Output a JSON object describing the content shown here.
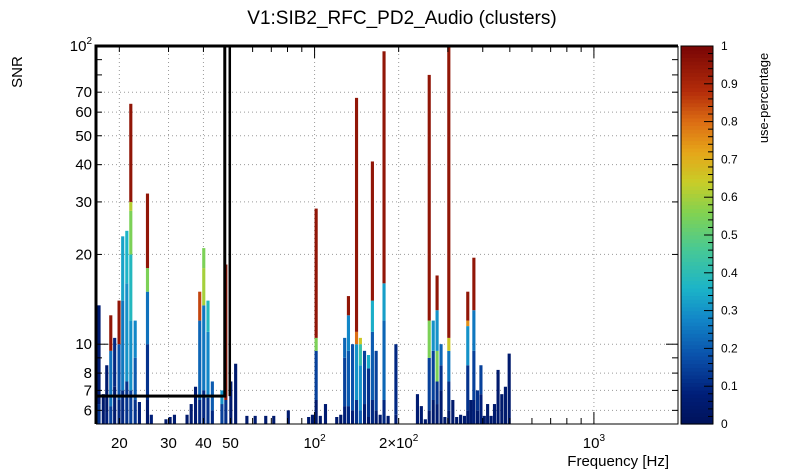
{
  "chart_data": {
    "type": "heatmap",
    "title": "V1:SIB2_RFC_PD2_Audio (clusters)",
    "xlabel": "Frequency [Hz]",
    "ylabel": "SNR",
    "zlabel": "use-percentage",
    "x_scale": "log",
    "y_scale": "log",
    "xlim": [
      16.5,
      2000
    ],
    "ylim": [
      5.4,
      100
    ],
    "zlim": [
      0,
      1
    ],
    "x_ticks": [
      {
        "value": 20,
        "label": "20"
      },
      {
        "value": 30,
        "label": "30"
      },
      {
        "value": 40,
        "label": "40"
      },
      {
        "value": 50,
        "label": "50"
      },
      {
        "value": 100,
        "label": "10",
        "sup": "2"
      },
      {
        "value": 200,
        "label": "2×10",
        "sup": "2"
      },
      {
        "value": 1000,
        "label": "10",
        "sup": "3"
      }
    ],
    "y_ticks": [
      {
        "value": 6,
        "label": "6"
      },
      {
        "value": 7,
        "label": "7"
      },
      {
        "value": 8,
        "label": "8"
      },
      {
        "value": 10,
        "label": "10"
      },
      {
        "value": 20,
        "label": "20"
      },
      {
        "value": 30,
        "label": "30"
      },
      {
        "value": 40,
        "label": "40"
      },
      {
        "value": 50,
        "label": "50"
      },
      {
        "value": 60,
        "label": "60"
      },
      {
        "value": 70,
        "label": "70"
      },
      {
        "value": 100,
        "label": "10",
        "sup": "2"
      }
    ],
    "z_ticks": [
      0,
      0.1,
      0.2,
      0.3,
      0.4,
      0.5,
      0.6,
      0.7,
      0.8,
      0.9,
      1
    ],
    "columns": [
      {
        "f": 16.7,
        "segs": [
          [
            5.4,
            6.3,
            0.12
          ],
          [
            6.3,
            13.5,
            0.06
          ]
        ]
      },
      {
        "f": 17.3,
        "segs": [
          [
            5.4,
            6.8,
            0.05
          ]
        ]
      },
      {
        "f": 17.8,
        "segs": [
          [
            5.4,
            5.9,
            0.08
          ],
          [
            5.9,
            8.5,
            0.05
          ]
        ]
      },
      {
        "f": 18.4,
        "segs": [
          [
            5.4,
            6.2,
            0.15
          ],
          [
            6.2,
            9.5,
            0.24
          ],
          [
            9.5,
            12.5,
            0.95
          ]
        ]
      },
      {
        "f": 19.0,
        "segs": [
          [
            5.4,
            7.2,
            0.05
          ],
          [
            7.2,
            10.5,
            0.1
          ]
        ]
      },
      {
        "f": 19.7,
        "segs": [
          [
            5.4,
            6.5,
            0.1
          ],
          [
            6.5,
            10,
            0.18
          ],
          [
            10,
            14,
            0.95
          ]
        ]
      },
      {
        "f": 20.3,
        "segs": [
          [
            5.4,
            7,
            0.1
          ],
          [
            7,
            14,
            0.25
          ],
          [
            14,
            23,
            0.33
          ]
        ]
      },
      {
        "f": 21.0,
        "segs": [
          [
            5.4,
            7.5,
            0.12
          ],
          [
            7.5,
            16,
            0.3
          ],
          [
            16,
            24,
            0.36
          ]
        ]
      },
      {
        "f": 21.7,
        "segs": [
          [
            5.4,
            7,
            0.15
          ],
          [
            7,
            12,
            0.3
          ],
          [
            12,
            20,
            0.38
          ],
          [
            20,
            28,
            0.55
          ],
          [
            28,
            30,
            0.62
          ],
          [
            30,
            64,
            0.95
          ]
        ]
      },
      {
        "f": 22.5,
        "segs": [
          [
            5.4,
            6.5,
            0.12
          ],
          [
            6.5,
            9,
            0.2
          ],
          [
            9,
            12,
            0.28
          ]
        ]
      },
      {
        "f": 23.3,
        "segs": [
          [
            5.4,
            6.4,
            0.08
          ]
        ]
      },
      {
        "f": 24.9,
        "segs": [
          [
            5.4,
            6.5,
            0.05
          ],
          [
            6.5,
            10,
            0.12
          ],
          [
            10,
            15,
            0.24
          ],
          [
            15,
            18,
            0.55
          ],
          [
            18,
            32,
            0.95
          ]
        ]
      },
      {
        "f": 25.7,
        "segs": [
          [
            5.4,
            5.8,
            0.08
          ]
        ]
      },
      {
        "f": 29.0,
        "segs": [
          [
            5.4,
            5.6,
            0.05
          ]
        ]
      },
      {
        "f": 30.0,
        "segs": [
          [
            5.4,
            5.7,
            0.05
          ]
        ]
      },
      {
        "f": 31.1,
        "segs": [
          [
            5.4,
            5.8,
            0.06
          ]
        ]
      },
      {
        "f": 34.5,
        "segs": [
          [
            5.4,
            5.8,
            0.05
          ]
        ]
      },
      {
        "f": 35.7,
        "segs": [
          [
            5.4,
            6.3,
            0.06
          ]
        ]
      },
      {
        "f": 37.0,
        "segs": [
          [
            5.4,
            7.2,
            0.06
          ]
        ]
      },
      {
        "f": 38.3,
        "segs": [
          [
            5.4,
            6.5,
            0.1
          ],
          [
            6.5,
            12,
            0.22
          ],
          [
            12,
            15,
            0.85
          ]
        ]
      },
      {
        "f": 39.6,
        "segs": [
          [
            5.4,
            7,
            0.1
          ],
          [
            7,
            13.5,
            0.25
          ],
          [
            13.5,
            18,
            0.6
          ],
          [
            18,
            21,
            0.55
          ]
        ]
      },
      {
        "f": 41.0,
        "segs": [
          [
            5.4,
            6.6,
            0.12
          ],
          [
            6.6,
            11,
            0.28
          ],
          [
            11,
            14,
            0.38
          ]
        ]
      },
      {
        "f": 42.5,
        "segs": [
          [
            5.4,
            6.0,
            0.1
          ],
          [
            6.0,
            7.5,
            0.2
          ]
        ]
      },
      {
        "f": 46.0,
        "segs": [
          [
            5.4,
            6.3,
            0.15
          ],
          [
            6.3,
            7.0,
            0.3
          ]
        ]
      },
      {
        "f": 47.5,
        "segs": [
          [
            5.4,
            6.5,
            0.12
          ],
          [
            6.5,
            18.5,
            0.95
          ]
        ]
      },
      {
        "f": 49.5,
        "segs": [
          [
            5.4,
            7.5,
            0.05
          ]
        ]
      },
      {
        "f": 51.5,
        "segs": [
          [
            5.4,
            8.6,
            0.05
          ]
        ]
      },
      {
        "f": 56.5,
        "segs": [
          [
            5.4,
            5.75,
            0.05
          ]
        ]
      },
      {
        "f": 60.5,
        "segs": [
          [
            5.4,
            5.75,
            0.06
          ]
        ]
      },
      {
        "f": 66.0,
        "segs": [
          [
            5.4,
            5.75,
            0.05
          ]
        ]
      },
      {
        "f": 70.5,
        "segs": [
          [
            5.4,
            5.75,
            0.05
          ]
        ]
      },
      {
        "f": 79.5,
        "segs": [
          [
            5.4,
            6.0,
            0.05
          ]
        ]
      },
      {
        "f": 94.0,
        "segs": [
          [
            5.4,
            5.7,
            0.05
          ]
        ]
      },
      {
        "f": 97.0,
        "segs": [
          [
            5.4,
            5.8,
            0.06
          ]
        ]
      },
      {
        "f": 100.0,
        "segs": [
          [
            5.4,
            6.5,
            0.05
          ],
          [
            6.5,
            9.5,
            0.15
          ],
          [
            9.5,
            10.5,
            0.55
          ],
          [
            10.5,
            28.5,
            0.95
          ]
        ]
      },
      {
        "f": 103.5,
        "segs": [
          [
            5.4,
            5.75,
            0.05
          ]
        ]
      },
      {
        "f": 108.0,
        "segs": [
          [
            5.4,
            6.3,
            0.06
          ]
        ]
      },
      {
        "f": 118.5,
        "segs": [
          [
            5.4,
            5.7,
            0.05
          ]
        ]
      },
      {
        "f": 122.5,
        "segs": [
          [
            5.4,
            5.8,
            0.05
          ]
        ]
      },
      {
        "f": 126.5,
        "segs": [
          [
            5.4,
            6.2,
            0.08
          ],
          [
            6.2,
            9.0,
            0.15
          ],
          [
            9.0,
            10.5,
            0.22
          ]
        ]
      },
      {
        "f": 130.5,
        "segs": [
          [
            5.4,
            6.2,
            0.1
          ],
          [
            6.2,
            9.5,
            0.2
          ],
          [
            9.5,
            12.5,
            0.28
          ],
          [
            12.5,
            14.5,
            0.95
          ]
        ]
      },
      {
        "f": 135.0,
        "segs": [
          [
            5.4,
            6.0,
            0.08
          ],
          [
            6.0,
            10,
            0.18
          ]
        ]
      },
      {
        "f": 139.5,
        "segs": [
          [
            5.4,
            6.5,
            0.12
          ],
          [
            6.5,
            10,
            0.3
          ],
          [
            10,
            11,
            0.8
          ],
          [
            11,
            67,
            0.95
          ]
        ]
      },
      {
        "f": 144.0,
        "segs": [
          [
            5.4,
            6.0,
            0.2
          ],
          [
            6.0,
            8.5,
            0.3
          ],
          [
            8.5,
            10,
            0.42
          ],
          [
            10,
            10.5,
            0.65
          ]
        ]
      },
      {
        "f": 149.0,
        "segs": [
          [
            5.4,
            6.3,
            0.06
          ],
          [
            6.3,
            9.5,
            0.15
          ]
        ]
      },
      {
        "f": 154.0,
        "segs": [
          [
            5.4,
            5.7,
            0.05
          ],
          [
            5.7,
            8.3,
            0.12
          ],
          [
            8.3,
            9.2,
            0.35
          ]
        ]
      },
      {
        "f": 159.0,
        "segs": [
          [
            5.4,
            6.5,
            0.1
          ],
          [
            6.5,
            11,
            0.2
          ],
          [
            11,
            14,
            0.35
          ],
          [
            14,
            41,
            0.95
          ]
        ]
      },
      {
        "f": 164.0,
        "segs": [
          [
            5.4,
            6.0,
            0.06
          ],
          [
            6.0,
            9.5,
            0.15
          ]
        ]
      },
      {
        "f": 169.5,
        "segs": [
          [
            5.4,
            5.8,
            0.05
          ]
        ]
      },
      {
        "f": 175.0,
        "segs": [
          [
            5.4,
            6.5,
            0.1
          ],
          [
            6.5,
            12,
            0.22
          ],
          [
            12,
            16,
            0.32
          ],
          [
            16,
            96,
            0.95
          ]
        ]
      },
      {
        "f": 181.0,
        "segs": [
          [
            5.4,
            5.75,
            0.05
          ]
        ]
      },
      {
        "f": 193.0,
        "segs": [
          [
            5.4,
            5.8,
            0.06
          ],
          [
            5.8,
            10,
            0.1
          ]
        ]
      },
      {
        "f": 230.5,
        "segs": [
          [
            5.4,
            6.8,
            0.06
          ]
        ]
      },
      {
        "f": 238.0,
        "segs": [
          [
            5.4,
            6.2,
            0.05
          ]
        ]
      },
      {
        "f": 246.0,
        "segs": [
          [
            5.4,
            5.6,
            0.05
          ]
        ]
      },
      {
        "f": 254.0,
        "segs": [
          [
            5.4,
            6.0,
            0.05
          ],
          [
            6.0,
            9.0,
            0.15
          ],
          [
            9.0,
            12,
            0.55
          ],
          [
            12,
            80,
            0.95
          ]
        ]
      },
      {
        "f": 262.5,
        "segs": [
          [
            5.4,
            6.5,
            0.05
          ],
          [
            6.5,
            9.5,
            0.15
          ],
          [
            9.5,
            12,
            0.3
          ]
        ]
      },
      {
        "f": 271.0,
        "segs": [
          [
            5.4,
            6.3,
            0.06
          ],
          [
            6.3,
            7.5,
            0.12
          ],
          [
            7.5,
            9.5,
            0.55
          ],
          [
            9.5,
            13,
            0.3
          ],
          [
            13,
            17,
            0.95
          ]
        ]
      },
      {
        "f": 280.0,
        "segs": [
          [
            5.4,
            7.0,
            0.05
          ],
          [
            7.0,
            8.5,
            0.12
          ],
          [
            8.5,
            10,
            0.22
          ]
        ]
      },
      {
        "f": 289.0,
        "segs": [
          [
            5.4,
            5.7,
            0.05
          ]
        ]
      },
      {
        "f": 298.5,
        "segs": [
          [
            5.4,
            6.0,
            0.05
          ],
          [
            6.0,
            7.5,
            0.12
          ],
          [
            7.5,
            9.5,
            0.25
          ],
          [
            9.5,
            10.5,
            0.65
          ],
          [
            10.5,
            100,
            0.95
          ]
        ]
      },
      {
        "f": 308.5,
        "segs": [
          [
            5.4,
            6.5,
            0.05
          ]
        ]
      },
      {
        "f": 318.5,
        "segs": [
          [
            5.4,
            5.7,
            0.05
          ]
        ]
      },
      {
        "f": 329.0,
        "segs": [
          [
            5.4,
            5.8,
            0.05
          ]
        ]
      },
      {
        "f": 339.5,
        "segs": [
          [
            5.4,
            5.75,
            0.05
          ]
        ]
      },
      {
        "f": 349.0,
        "segs": [
          [
            5.4,
            6.0,
            0.05
          ],
          [
            6.0,
            8.5,
            0.12
          ],
          [
            8.5,
            11.5,
            0.3
          ],
          [
            11.5,
            12,
            0.75
          ],
          [
            12,
            15,
            0.95
          ]
        ]
      },
      {
        "f": 358.0,
        "segs": [
          [
            5.4,
            6.5,
            0.05
          ]
        ]
      },
      {
        "f": 367.0,
        "segs": [
          [
            5.4,
            6.5,
            0.08
          ],
          [
            6.5,
            9.5,
            0.15
          ],
          [
            9.5,
            13,
            0.25
          ],
          [
            13,
            19.5,
            0.95
          ]
        ]
      },
      {
        "f": 378.0,
        "segs": [
          [
            5.4,
            6.0,
            0.05
          ],
          [
            6.0,
            7.0,
            0.12
          ]
        ]
      },
      {
        "f": 389.0,
        "segs": [
          [
            5.4,
            6.8,
            0.08
          ],
          [
            6.8,
            8.5,
            0.15
          ]
        ]
      },
      {
        "f": 400.0,
        "segs": [
          [
            5.4,
            5.75,
            0.05
          ]
        ]
      },
      {
        "f": 411.0,
        "segs": [
          [
            5.4,
            6.3,
            0.05
          ]
        ]
      },
      {
        "f": 423.0,
        "segs": [
          [
            5.4,
            5.75,
            0.05
          ]
        ]
      },
      {
        "f": 435.0,
        "segs": [
          [
            5.4,
            6.3,
            0.05
          ]
        ]
      },
      {
        "f": 448.0,
        "segs": [
          [
            5.4,
            8.2,
            0.05
          ]
        ]
      },
      {
        "f": 462.0,
        "segs": [
          [
            5.4,
            6.8,
            0.05
          ]
        ]
      },
      {
        "f": 476.0,
        "segs": [
          [
            5.4,
            7.2,
            0.05
          ]
        ]
      },
      {
        "f": 491.0,
        "segs": [
          [
            5.4,
            9.3,
            0.05
          ]
        ]
      }
    ],
    "highlight_box": {
      "x_range": [
        16.5,
        47.7
      ],
      "y_range": [
        6.7,
        100
      ]
    },
    "frame": {
      "x_range": [
        16.5,
        2000
      ],
      "y_range": [
        5.4,
        100
      ]
    }
  }
}
